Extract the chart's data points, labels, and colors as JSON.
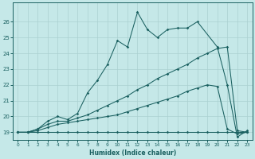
{
  "xlabel": "Humidex (Indice chaleur)",
  "bg_color": "#c5e8e8",
  "line_color": "#1a6060",
  "grid_color": "#aad0d0",
  "xlim": [
    -0.5,
    23.5
  ],
  "ylim": [
    18.5,
    27.2
  ],
  "yticks": [
    19,
    20,
    21,
    22,
    23,
    24,
    25,
    26
  ],
  "xticks": [
    0,
    1,
    2,
    3,
    4,
    5,
    6,
    7,
    8,
    9,
    10,
    11,
    12,
    13,
    14,
    15,
    16,
    17,
    18,
    19,
    20,
    21,
    22,
    23
  ],
  "curve1_x": [
    0,
    1,
    2,
    3,
    4,
    5,
    6,
    7,
    8,
    9,
    10,
    11,
    12,
    13,
    14,
    15,
    16,
    17,
    18,
    19,
    20,
    21,
    22,
    23
  ],
  "curve1_y": [
    19.0,
    19.0,
    19.0,
    19.0,
    19.0,
    19.0,
    19.0,
    19.0,
    19.0,
    19.0,
    19.0,
    19.0,
    19.0,
    19.0,
    19.0,
    19.0,
    19.0,
    19.0,
    19.0,
    19.0,
    19.0,
    19.0,
    19.0,
    19.0
  ],
  "curve2_x": [
    0,
    1,
    2,
    3,
    4,
    5,
    6,
    7,
    8,
    9,
    10,
    11,
    12,
    13,
    14,
    15,
    16,
    17,
    18,
    19,
    20,
    21,
    22,
    23
  ],
  "curve2_y": [
    19.0,
    19.0,
    19.1,
    19.3,
    19.5,
    19.6,
    19.7,
    19.8,
    19.9,
    20.0,
    20.1,
    20.3,
    20.5,
    20.7,
    20.9,
    21.1,
    21.3,
    21.6,
    21.8,
    22.0,
    21.9,
    19.2,
    18.9,
    19.0
  ],
  "curve3_x": [
    0,
    1,
    2,
    3,
    4,
    5,
    6,
    7,
    8,
    9,
    10,
    11,
    12,
    13,
    14,
    15,
    16,
    17,
    18,
    19,
    20,
    21,
    22,
    23
  ],
  "curve3_y": [
    19.0,
    19.0,
    19.2,
    19.5,
    19.7,
    19.7,
    19.9,
    20.1,
    20.4,
    20.7,
    21.0,
    21.3,
    21.7,
    22.0,
    22.4,
    22.7,
    23.0,
    23.3,
    23.7,
    24.0,
    24.3,
    24.4,
    19.1,
    19.0
  ],
  "curve4_x": [
    0,
    1,
    2,
    3,
    4,
    5,
    6,
    7,
    8,
    9,
    10,
    11,
    12,
    13,
    14,
    15,
    16,
    17,
    18,
    20,
    21,
    22,
    23
  ],
  "curve4_y": [
    19.0,
    19.0,
    19.2,
    19.7,
    20.0,
    19.8,
    20.2,
    21.5,
    22.3,
    23.3,
    24.8,
    24.4,
    26.6,
    25.5,
    25.0,
    25.5,
    25.6,
    25.6,
    26.0,
    24.4,
    22.0,
    18.7,
    19.1
  ]
}
